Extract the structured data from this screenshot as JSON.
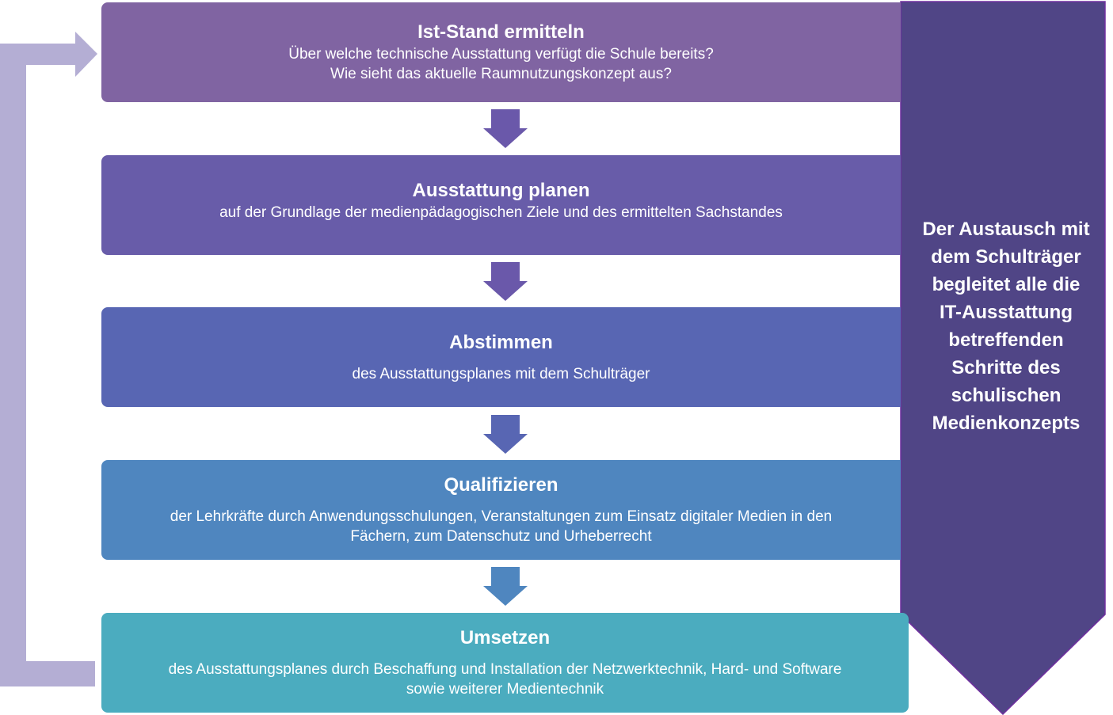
{
  "colors": {
    "loop_arrow": "#b4aed4",
    "side_arrow": "#504586",
    "side_arrow_outline": "#7030a0",
    "box1": "#8064a2",
    "box2": "#685ca9",
    "box3": "#5866b3",
    "box4": "#4f86bf",
    "box5": "#4bacbf",
    "down_arrow1": "#6a58aa",
    "down_arrow2": "#6a58aa",
    "down_arrow3": "#5866b3",
    "down_arrow4": "#4f86bf"
  },
  "steps": [
    {
      "title": "Ist-Stand ermitteln",
      "lines": [
        "Über welche technische Ausstattung verfügt die Schule bereits?",
        "Wie sieht das aktuelle Raumnutzungskonzept aus?"
      ]
    },
    {
      "title": "Ausstattung planen",
      "lines": [
        "auf der Grundlage der medienpädagogischen Ziele und des ermittelten Sachstandes"
      ]
    },
    {
      "title": "Abstimmen",
      "lines": [
        "des Ausstattungsplanes mit dem Schulträger"
      ]
    },
    {
      "title": "Qualifizieren",
      "lines": [
        "der Lehrkräfte durch Anwendungsschulungen, Veranstaltungen zum Einsatz digitaler Medien in den",
        "Fächern, zum Datenschutz und Urheberrecht"
      ]
    },
    {
      "title": "Umsetzen",
      "lines": [
        "des Ausstattungsplanes durch Beschaffung und Installation der Netzwerktechnik, Hard- und Software",
        "sowie weiterer Medientechnik"
      ]
    }
  ],
  "side_text": [
    "Der Austausch mit",
    "dem Schulträger",
    "begleitet alle die",
    "IT-Ausstattung",
    "betreffenden",
    "Schritte des",
    "schulischen",
    "Medienkonzepts"
  ]
}
